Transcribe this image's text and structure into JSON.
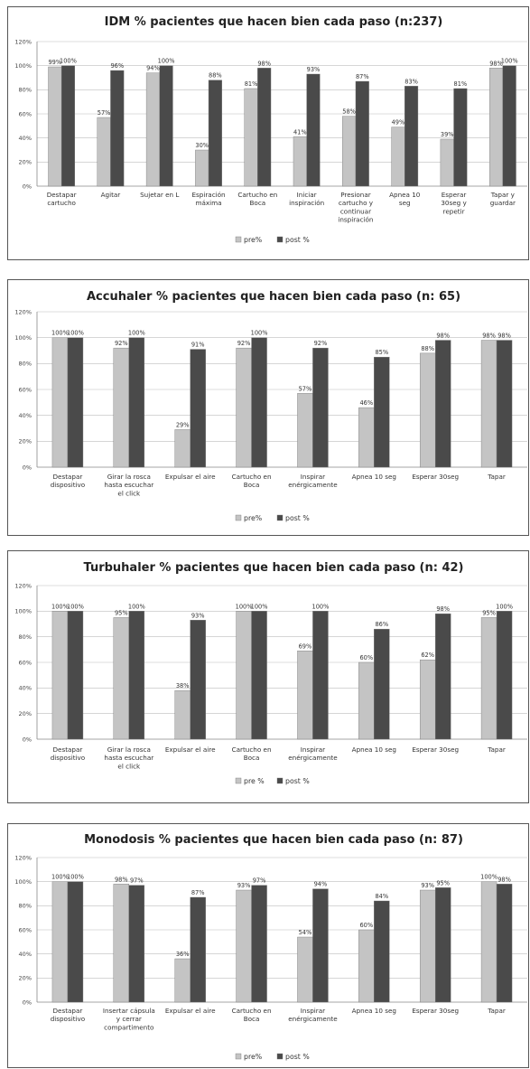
{
  "chart_data": [
    {
      "type": "bar",
      "title": "IDM % pacientes que hacen bien cada paso (n:237)",
      "ylim": [
        0,
        120
      ],
      "yticks": [
        "0%",
        "20%",
        "40%",
        "60%",
        "80%",
        "100%",
        "120%"
      ],
      "categories": [
        [
          "Destapar",
          "cartucho"
        ],
        [
          "Agitar"
        ],
        [
          "Sujetar en L"
        ],
        [
          "Espiración",
          "máxima"
        ],
        [
          "Cartucho en",
          "Boca"
        ],
        [
          "Iniciar",
          "inspiración"
        ],
        [
          "Presionar",
          "cartucho y",
          "continuar",
          "inspiración"
        ],
        [
          "Apnea 10",
          "seg"
        ],
        [
          "Esperar",
          "30seg y",
          "repetir"
        ],
        [
          "Tapar y",
          "guardar"
        ]
      ],
      "series": [
        {
          "name": "pre%",
          "color": "#c4c4c4",
          "values": [
            99,
            57,
            94,
            30,
            81,
            41,
            58,
            49,
            39,
            98
          ],
          "labels": [
            "99%",
            "57%",
            "94%",
            "30%",
            "81%",
            "41%",
            "58%",
            "49%",
            "39%",
            "98%"
          ]
        },
        {
          "name": "post %",
          "color": "#4a4a4a",
          "values": [
            100,
            96,
            100,
            88,
            98,
            93,
            87,
            83,
            81,
            100
          ],
          "labels": [
            "100%",
            "96%",
            "100%",
            "88%",
            "98%",
            "93%",
            "87%",
            "83%",
            "81%",
            "100%"
          ]
        }
      ],
      "legend": "bottom",
      "grid": true
    },
    {
      "type": "bar",
      "title": "Accuhaler % pacientes que hacen bien cada paso (n: 65)",
      "ylim": [
        0,
        120
      ],
      "yticks": [
        "0%",
        "20%",
        "40%",
        "60%",
        "80%",
        "100%",
        "120%"
      ],
      "categories": [
        [
          "Destapar",
          "dispositivo"
        ],
        [
          "Girar la rosca",
          "hasta escuchar",
          "el click"
        ],
        [
          "Expulsar el aire"
        ],
        [
          "Cartucho en",
          "Boca"
        ],
        [
          "Inspirar",
          "enérgicamente"
        ],
        [
          "Apnea 10 seg"
        ],
        [
          "Esperar 30seg"
        ],
        [
          "Tapar"
        ]
      ],
      "series": [
        {
          "name": "pre%",
          "color": "#c4c4c4",
          "values": [
            100,
            92,
            29,
            92,
            57,
            46,
            88,
            98
          ],
          "labels": [
            "100%",
            "92%",
            "29%",
            "92%",
            "57%",
            "46%",
            "88%",
            "98%"
          ]
        },
        {
          "name": "post %",
          "color": "#4a4a4a",
          "values": [
            100,
            100,
            91,
            100,
            92,
            85,
            98,
            98
          ],
          "labels": [
            "100%",
            "100%",
            "91%",
            "100%",
            "92%",
            "85%",
            "98%",
            "98%"
          ]
        }
      ],
      "legend": "bottom",
      "grid": true
    },
    {
      "type": "bar",
      "title": "Turbuhaler % pacientes que hacen bien cada paso (n: 42)",
      "ylim": [
        0,
        120
      ],
      "yticks": [
        "0%",
        "20%",
        "40%",
        "60%",
        "80%",
        "100%",
        "120%"
      ],
      "categories": [
        [
          "Destapar",
          "dispositivo"
        ],
        [
          "Girar la rosca",
          "hasta escuchar",
          "el click"
        ],
        [
          "Expulsar el aire"
        ],
        [
          "Cartucho en",
          "Boca"
        ],
        [
          "Inspirar",
          "enérgicamente"
        ],
        [
          "Apnea 10 seg"
        ],
        [
          "Esperar 30seg"
        ],
        [
          "Tapar"
        ]
      ],
      "series": [
        {
          "name": "pre %",
          "color": "#c4c4c4",
          "values": [
            100,
            95,
            38,
            100,
            69,
            60,
            62,
            95
          ],
          "labels": [
            "100%",
            "95%",
            "38%",
            "100%",
            "69%",
            "60%",
            "62%",
            "95%"
          ]
        },
        {
          "name": "post %",
          "color": "#4a4a4a",
          "values": [
            100,
            100,
            93,
            100,
            100,
            86,
            98,
            100
          ],
          "labels": [
            "100%",
            "100%",
            "93%",
            "100%",
            "100%",
            "86%",
            "98%",
            "100%"
          ]
        }
      ],
      "legend": "bottom",
      "grid": true
    },
    {
      "type": "bar",
      "title": "Monodosis % pacientes que hacen bien cada paso (n: 87)",
      "ylim": [
        0,
        120
      ],
      "yticks": [
        "0%",
        "20%",
        "40%",
        "60%",
        "80%",
        "100%",
        "120%"
      ],
      "categories": [
        [
          "Destapar",
          "dispositivo"
        ],
        [
          "Insertar cápsula",
          "y cerrar",
          "compartimento"
        ],
        [
          "Expulsar el aire"
        ],
        [
          "Cartucho en",
          "Boca"
        ],
        [
          "Inspirar",
          "enérgicamente"
        ],
        [
          "Apnea 10 seg"
        ],
        [
          "Esperar 30seg"
        ],
        [
          "Tapar"
        ]
      ],
      "series": [
        {
          "name": "pre%",
          "color": "#c4c4c4",
          "values": [
            100,
            98,
            36,
            93,
            54,
            60,
            93,
            100
          ],
          "labels": [
            "100%",
            "98%",
            "36%",
            "93%",
            "54%",
            "60%",
            "93%",
            "100%"
          ]
        },
        {
          "name": "post %",
          "color": "#4a4a4a",
          "values": [
            100,
            97,
            87,
            97,
            94,
            84,
            95,
            98
          ],
          "labels": [
            "100%",
            "97%",
            "87%",
            "97%",
            "94%",
            "84%",
            "95%",
            "98%"
          ]
        }
      ],
      "legend": "bottom",
      "grid": true
    }
  ]
}
